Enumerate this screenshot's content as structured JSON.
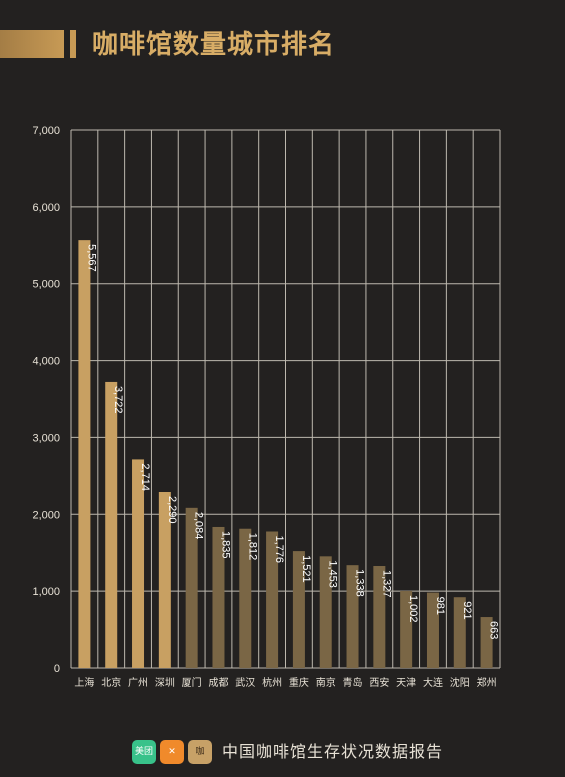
{
  "title": "咖啡馆数量城市排名",
  "footer": {
    "source": "中国咖啡馆生存状况数据报告",
    "logos": [
      "meituan-logo",
      "ele-logo",
      "kafei-logo"
    ]
  },
  "colors": {
    "background": "#232120",
    "highlight_bar": "#c8a062",
    "normal_bar": "#7a6645",
    "grid": "#bdb8ae",
    "text": "#e8e2d6",
    "title": "#d8ad66"
  },
  "chart_data": {
    "type": "bar",
    "categories": [
      "上海",
      "北京",
      "广州",
      "深圳",
      "厦门",
      "成都",
      "武汉",
      "杭州",
      "重庆",
      "南京",
      "青岛",
      "西安",
      "天津",
      "大连",
      "沈阳",
      "郑州"
    ],
    "values": [
      5567,
      3722,
      2714,
      2290,
      2084,
      1835,
      1812,
      1776,
      1521,
      1453,
      1338,
      1327,
      1002,
      981,
      921,
      663
    ],
    "value_labels": [
      "5,567",
      "3,722",
      "2,714",
      "2,290",
      "2,084",
      "1,835",
      "1,812",
      "1,776",
      "1,521",
      "1,453",
      "1,338",
      "1,327",
      "1,002",
      "981",
      "921",
      "663"
    ],
    "highlight_count": 4,
    "ylim": [
      0,
      7000
    ],
    "yticks": [
      0,
      1000,
      2000,
      3000,
      4000,
      5000,
      6000,
      7000
    ],
    "ytick_labels": [
      "0",
      "1,000",
      "2,000",
      "3,000",
      "4,000",
      "5,000",
      "6,000",
      "7,000"
    ],
    "grid": true,
    "xlabel": "",
    "ylabel": ""
  }
}
